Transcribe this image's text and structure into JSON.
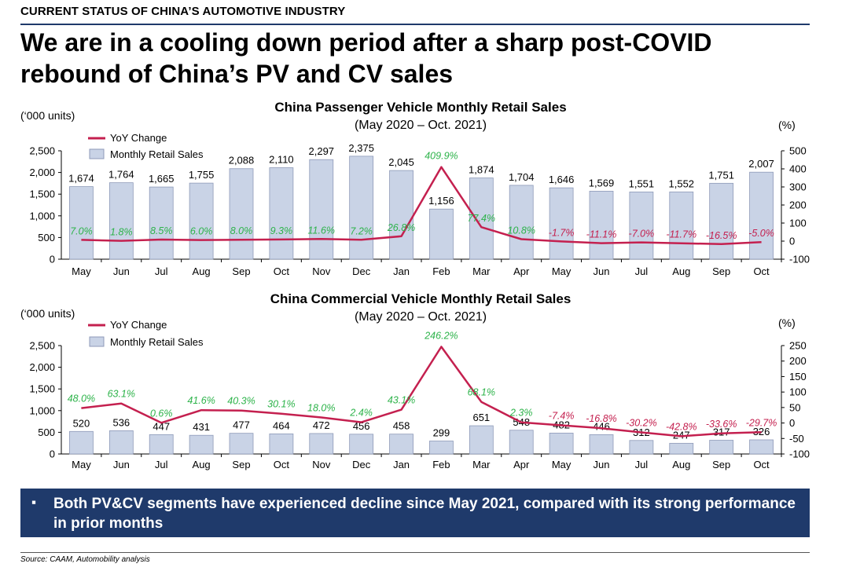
{
  "header": {
    "section_label": "CURRENT STATUS OF CHINA’S AUTOMOTIVE INDUSTRY",
    "headline": "We are in a cooling down period after a sharp post-COVID rebound of China’s PV and CV sales"
  },
  "callout": {
    "bullet": "▪",
    "text": "Both PV&CV segments have experienced decline since May 2021, compared with its strong performance in prior months"
  },
  "source": "Source: CAAM, Automobility analysis",
  "colors": {
    "bar_fill": "#c9d3e6",
    "bar_stroke": "#8e9ab8",
    "line": "#c4204f",
    "positive_label": "#2db34a",
    "negative_label": "#c4204f",
    "navy": "#1f3a6b"
  },
  "chart_data": [
    {
      "id": "pv",
      "type": "bar",
      "title": "China Passenger Vehicle Monthly Retail Sales",
      "subtitle": "(May 2020 – Oct. 2021)",
      "ylabel": "(‘000 units)",
      "y2label": "(%)",
      "ylim": [
        0,
        2500
      ],
      "yticks": [
        0,
        500,
        1000,
        1500,
        2000,
        2500
      ],
      "y2lim": [
        -100,
        500
      ],
      "y2ticks": [
        -100,
        0,
        100,
        200,
        300,
        400,
        500
      ],
      "legend_line": "YoY Change",
      "legend_bar": "Monthly Retail Sales",
      "legend_position": "top-left",
      "categories": [
        "May",
        "Jun",
        "Jul",
        "Aug",
        "Sep",
        "Oct",
        "Nov",
        "Dec",
        "Jan",
        "Feb",
        "Mar",
        "Apr",
        "May",
        "Jun",
        "Jul",
        "Aug",
        "Sep",
        "Oct"
      ],
      "series": [
        {
          "name": "Monthly Retail Sales",
          "kind": "bar",
          "axis": "left",
          "values": [
            1674,
            1764,
            1665,
            1755,
            2088,
            2110,
            2297,
            2375,
            2045,
            1156,
            1874,
            1704,
            1646,
            1569,
            1551,
            1552,
            1751,
            2007
          ],
          "labels": [
            "1,674",
            "1,764",
            "1,665",
            "1,755",
            "2,088",
            "2,110",
            "2,297",
            "2,375",
            "2,045",
            "1,156",
            "1,874",
            "1,704",
            "1,646",
            "1,569",
            "1,551",
            "1,552",
            "1,751",
            "2,007"
          ]
        },
        {
          "name": "YoY Change",
          "kind": "line",
          "axis": "right",
          "values": [
            7.0,
            1.8,
            8.5,
            6.0,
            8.0,
            9.3,
            11.6,
            7.2,
            26.8,
            409.9,
            77.4,
            10.8,
            -1.7,
            -11.1,
            -7.0,
            -11.7,
            -16.5,
            -5.0
          ],
          "labels": [
            "7.0%",
            "1.8%",
            "8.5%",
            "6.0%",
            "8.0%",
            "9.3%",
            "11.6%",
            "7.2%",
            "26.8%",
            "409.9%",
            "77.4%",
            "10.8%",
            "-1.7%",
            "-11.1%",
            "-7.0%",
            "-11.7%",
            "-16.5%",
            "-5.0%"
          ]
        }
      ],
      "ytick_labels": [
        "0",
        "500",
        "1,000",
        "1,500",
        "2,000",
        "2,500"
      ],
      "y2tick_labels": [
        "-100",
        "0",
        "100",
        "200",
        "300",
        "400",
        "500"
      ]
    },
    {
      "id": "cv",
      "type": "bar",
      "title": "China Commercial Vehicle Monthly Retail Sales",
      "subtitle": "(May 2020 – Oct. 2021)",
      "ylabel": "(‘000 units)",
      "y2label": "(%)",
      "ylim": [
        0,
        2500
      ],
      "yticks": [
        0,
        500,
        1000,
        1500,
        2000,
        2500
      ],
      "y2lim": [
        -100,
        250
      ],
      "y2ticks": [
        -100,
        -50,
        0,
        50,
        100,
        150,
        200,
        250
      ],
      "legend_line": "YoY Change",
      "legend_bar": "Monthly Retail Sales",
      "legend_position": "top-left",
      "categories": [
        "May",
        "Jun",
        "Jul",
        "Aug",
        "Sep",
        "Oct",
        "Nov",
        "Dec",
        "Jan",
        "Feb",
        "Mar",
        "Apr",
        "May",
        "Jun",
        "Jul",
        "Aug",
        "Sep",
        "Oct"
      ],
      "series": [
        {
          "name": "Monthly Retail Sales",
          "kind": "bar",
          "axis": "left",
          "values": [
            520,
            536,
            447,
            431,
            477,
            464,
            472,
            456,
            458,
            299,
            651,
            548,
            482,
            446,
            312,
            247,
            317,
            326
          ],
          "labels": [
            "520",
            "536",
            "447",
            "431",
            "477",
            "464",
            "472",
            "456",
            "458",
            "299",
            "651",
            "548",
            "482",
            "446",
            "312",
            "247",
            "317",
            "326"
          ]
        },
        {
          "name": "YoY Change",
          "kind": "line",
          "axis": "right",
          "values": [
            48.0,
            63.1,
            0.6,
            41.6,
            40.3,
            30.1,
            18.0,
            2.4,
            43.1,
            246.2,
            68.1,
            2.3,
            -7.4,
            -16.8,
            -30.2,
            -42.8,
            -33.6,
            -29.7
          ],
          "labels": [
            "48.0%",
            "63.1%",
            "0.6%",
            "41.6%",
            "40.3%",
            "30.1%",
            "18.0%",
            "2.4%",
            "43.1%",
            "246.2%",
            "68.1%",
            "2.3%",
            "-7.4%",
            "-16.8%",
            "-30.2%",
            "-42.8%",
            "-33.6%",
            "-29.7%"
          ]
        }
      ],
      "ytick_labels": [
        "0",
        "500",
        "1,000",
        "1,500",
        "2,000",
        "2,500"
      ],
      "y2tick_labels": [
        "-100",
        "-50",
        "0",
        "50",
        "100",
        "150",
        "200",
        "250"
      ]
    }
  ]
}
